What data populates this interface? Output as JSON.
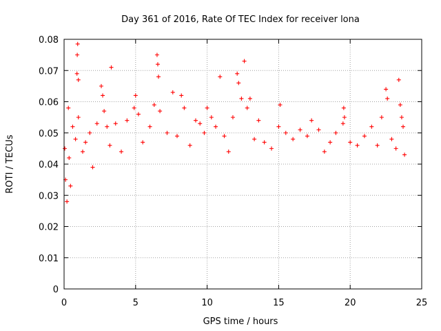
{
  "chart_data": {
    "type": "scatter",
    "title": "Day 361 of 2016, Rate Of TEC Index for receiver lona",
    "xlabel": "GPS time / hours",
    "ylabel": "ROTI / TECUs",
    "xlim": [
      0,
      25
    ],
    "ylim": [
      0,
      0.08
    ],
    "x_ticks": [
      0,
      5,
      10,
      15,
      20,
      25
    ],
    "x_tick_labels": [
      "0",
      "5",
      "10",
      "15",
      "20",
      "25"
    ],
    "y_ticks": [
      0,
      0.01,
      0.02,
      0.03,
      0.04,
      0.05,
      0.06,
      0.07,
      0.08
    ],
    "y_tick_labels": [
      "0",
      "0.01",
      "0.02",
      "0.03",
      "0.04",
      "0.05",
      "0.06",
      "0.07",
      "0.08"
    ],
    "grid": true,
    "marker": "plus",
    "color": "#ff0000",
    "series": [
      {
        "points": [
          [
            0.05,
            0.045
          ],
          [
            0.1,
            0.035
          ],
          [
            0.2,
            0.028
          ],
          [
            0.3,
            0.058
          ],
          [
            0.35,
            0.042
          ],
          [
            0.45,
            0.033
          ],
          [
            0.6,
            0.052
          ],
          [
            0.8,
            0.048
          ],
          [
            0.9,
            0.069
          ],
          [
            0.92,
            0.075
          ],
          [
            0.95,
            0.0785
          ],
          [
            1.0,
            0.067
          ],
          [
            1.0,
            0.055
          ],
          [
            1.3,
            0.044
          ],
          [
            1.5,
            0.047
          ],
          [
            1.8,
            0.05
          ],
          [
            2.0,
            0.039
          ],
          [
            2.3,
            0.053
          ],
          [
            2.6,
            0.065
          ],
          [
            2.7,
            0.062
          ],
          [
            2.8,
            0.057
          ],
          [
            3.0,
            0.052
          ],
          [
            3.2,
            0.046
          ],
          [
            3.3,
            0.071
          ],
          [
            3.6,
            0.053
          ],
          [
            4.0,
            0.044
          ],
          [
            4.4,
            0.054
          ],
          [
            4.9,
            0.058
          ],
          [
            5.0,
            0.062
          ],
          [
            5.2,
            0.056
          ],
          [
            5.5,
            0.047
          ],
          [
            6.0,
            0.052
          ],
          [
            6.3,
            0.059
          ],
          [
            6.5,
            0.075
          ],
          [
            6.55,
            0.072
          ],
          [
            6.6,
            0.068
          ],
          [
            6.7,
            0.057
          ],
          [
            7.2,
            0.05
          ],
          [
            7.6,
            0.063
          ],
          [
            7.9,
            0.049
          ],
          [
            8.2,
            0.062
          ],
          [
            8.4,
            0.058
          ],
          [
            8.8,
            0.046
          ],
          [
            9.2,
            0.054
          ],
          [
            9.5,
            0.053
          ],
          [
            9.8,
            0.05
          ],
          [
            10.0,
            0.058
          ],
          [
            10.3,
            0.055
          ],
          [
            10.6,
            0.052
          ],
          [
            10.9,
            0.068
          ],
          [
            11.2,
            0.049
          ],
          [
            11.5,
            0.044
          ],
          [
            11.8,
            0.055
          ],
          [
            12.1,
            0.069
          ],
          [
            12.2,
            0.066
          ],
          [
            12.4,
            0.061
          ],
          [
            12.6,
            0.073
          ],
          [
            12.8,
            0.058
          ],
          [
            13.0,
            0.061
          ],
          [
            13.3,
            0.048
          ],
          [
            13.6,
            0.054
          ],
          [
            14.0,
            0.047
          ],
          [
            14.5,
            0.045
          ],
          [
            15.0,
            0.052
          ],
          [
            15.1,
            0.059
          ],
          [
            15.5,
            0.05
          ],
          [
            16.0,
            0.048
          ],
          [
            16.5,
            0.051
          ],
          [
            17.0,
            0.049
          ],
          [
            17.3,
            0.054
          ],
          [
            17.8,
            0.051
          ],
          [
            18.2,
            0.044
          ],
          [
            18.6,
            0.047
          ],
          [
            19.0,
            0.05
          ],
          [
            19.5,
            0.053
          ],
          [
            19.55,
            0.058
          ],
          [
            19.6,
            0.055
          ],
          [
            20.0,
            0.047
          ],
          [
            20.5,
            0.046
          ],
          [
            21.0,
            0.049
          ],
          [
            21.5,
            0.052
          ],
          [
            21.9,
            0.046
          ],
          [
            22.2,
            0.055
          ],
          [
            22.5,
            0.064
          ],
          [
            22.6,
            0.061
          ],
          [
            22.9,
            0.048
          ],
          [
            23.2,
            0.045
          ],
          [
            23.4,
            0.067
          ],
          [
            23.5,
            0.059
          ],
          [
            23.6,
            0.055
          ],
          [
            23.7,
            0.052
          ],
          [
            23.8,
            0.043
          ]
        ]
      }
    ]
  }
}
